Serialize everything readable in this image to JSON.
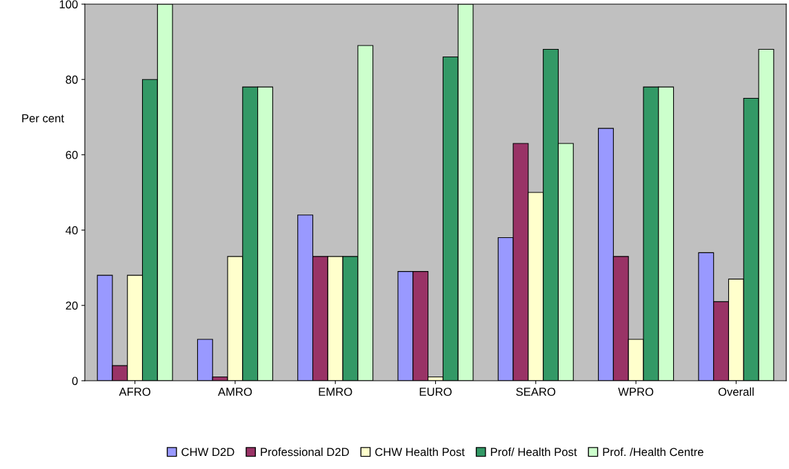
{
  "chart_data": {
    "type": "bar",
    "ylabel": "Per cent",
    "categories": [
      "AFRO",
      "AMRO",
      "EMRO",
      "EURO",
      "SEARO",
      "WPRO",
      "Overall"
    ],
    "series": [
      {
        "name": "CHW D2D",
        "color": "#9999ff",
        "values": [
          28,
          11,
          44,
          29,
          38,
          67,
          34
        ]
      },
      {
        "name": "Professional D2D",
        "color": "#993366",
        "values": [
          4,
          1,
          33,
          29,
          63,
          33,
          21
        ]
      },
      {
        "name": "CHW Health Post",
        "color": "#ffffcc",
        "values": [
          28,
          33,
          33,
          1,
          50,
          11,
          27
        ]
      },
      {
        "name": "Prof/ Health Post",
        "color": "#339966",
        "values": [
          80,
          78,
          33,
          86,
          88,
          78,
          75
        ]
      },
      {
        "name": "Prof. /Health Centre",
        "color": "#ccffcc",
        "values": [
          100,
          78,
          89,
          100,
          63,
          78,
          88
        ]
      }
    ],
    "ylim": [
      0,
      100
    ],
    "yticks": [
      0,
      20,
      40,
      60,
      80,
      100
    ],
    "grid": false,
    "legend": "bottom"
  }
}
